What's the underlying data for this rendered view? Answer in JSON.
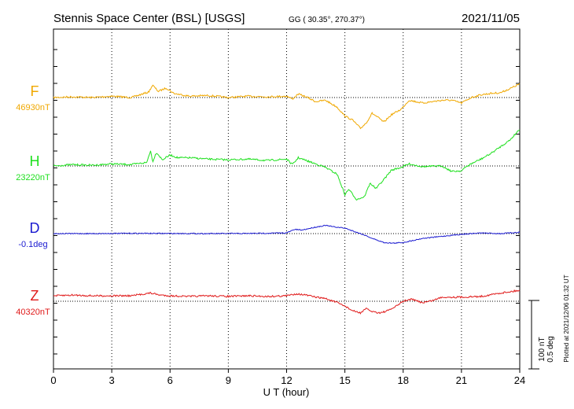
{
  "chart_data": {
    "type": "line",
    "title": "Stennis Space Center (BSL)  [USGS]",
    "subtitle": "GG ( 30.35°, 270.37°)",
    "date": "2021/11/05",
    "xlabel": "U T (hour)",
    "xlim": [
      0,
      24
    ],
    "xticks": [
      "0",
      "3",
      "6",
      "9",
      "12",
      "15",
      "18",
      "21",
      "24"
    ],
    "grid": true,
    "scale_bar": {
      "label1": "100 nT",
      "label2": "0.5 deg"
    },
    "plotted_note": "Plotted at 2021/12/06 01:32 UT",
    "series": [
      {
        "name": "F",
        "baseline_label": "46930nT",
        "color": "#f0a800",
        "unit": "nT",
        "baseline": 46930,
        "x": [
          0,
          1,
          2,
          3,
          4,
          4.9,
          5.1,
          5.4,
          5.8,
          6.2,
          7,
          8,
          9,
          10,
          11,
          12,
          12.3,
          12.6,
          13,
          13.5,
          14,
          14.6,
          15,
          15.4,
          15.8,
          16.1,
          16.4,
          16.7,
          17,
          17.4,
          17.9,
          18.3,
          19,
          20,
          20.5,
          21,
          21.5,
          22,
          22.5,
          23,
          23.5,
          24
        ],
        "values": [
          46930,
          46931,
          46930,
          46932,
          46930,
          46938,
          46948,
          46939,
          46944,
          46936,
          46932,
          46933,
          46930,
          46932,
          46931,
          46932,
          46928,
          46935,
          46931,
          46924,
          46926,
          46916,
          46903,
          46897,
          46885,
          46893,
          46907,
          46901,
          46894,
          46905,
          46913,
          46926,
          46922,
          46926,
          46926,
          46922,
          46930,
          46934,
          46936,
          46937,
          46943,
          46950
        ]
      },
      {
        "name": "H",
        "baseline_label": "23220nT",
        "color": "#1ee01e",
        "unit": "nT",
        "baseline": 23220,
        "x": [
          0,
          1,
          2,
          3,
          4,
          4.8,
          5.0,
          5.1,
          5.3,
          5.6,
          6,
          6.4,
          7,
          8,
          9,
          10,
          11,
          12,
          12.3,
          12.6,
          13,
          13.5,
          14,
          14.6,
          15,
          15.2,
          15.6,
          16,
          16.3,
          16.6,
          17,
          17.4,
          17.9,
          18.3,
          19,
          20,
          20.5,
          21,
          21.3,
          21.7,
          22,
          22.5,
          23,
          23.5,
          24
        ],
        "values": [
          23220,
          23222,
          23221,
          23223,
          23222,
          23225,
          23243,
          23226,
          23240,
          23229,
          23236,
          23232,
          23232,
          23230,
          23229,
          23230,
          23228,
          23230,
          23222,
          23232,
          23228,
          23223,
          23218,
          23208,
          23178,
          23186,
          23171,
          23175,
          23195,
          23187,
          23200,
          23214,
          23218,
          23223,
          23219,
          23220,
          23212,
          23213,
          23220,
          23226,
          23230,
          23238,
          23248,
          23258,
          23274
        ]
      },
      {
        "name": "D",
        "baseline_label": "-0.1deg",
        "color": "#1a1ad0",
        "unit": "deg",
        "baseline": -0.1,
        "x": [
          0,
          2,
          4,
          6,
          8,
          10,
          12,
          12.4,
          12.8,
          13.4,
          14,
          14.4,
          15,
          15.5,
          16,
          16.5,
          17,
          17.5,
          18,
          18.5,
          19,
          20,
          21,
          22,
          23,
          24
        ],
        "values": [
          -0.1,
          -0.1,
          -0.098,
          -0.099,
          -0.1,
          -0.099,
          -0.095,
          -0.07,
          -0.074,
          -0.055,
          -0.04,
          -0.05,
          -0.06,
          -0.085,
          -0.11,
          -0.14,
          -0.165,
          -0.17,
          -0.165,
          -0.15,
          -0.135,
          -0.12,
          -0.105,
          -0.095,
          -0.1,
          -0.09
        ]
      },
      {
        "name": "Z",
        "baseline_label": "40320nT",
        "color": "#e01a1a",
        "unit": "nT",
        "baseline": 40320,
        "x": [
          0,
          1,
          2,
          3,
          4,
          5,
          5.5,
          6,
          7,
          8,
          9,
          10,
          11,
          12,
          12.5,
          13,
          13.5,
          14,
          14.6,
          15,
          15.4,
          15.8,
          16.1,
          16.4,
          16.8,
          17.2,
          17.6,
          18,
          18.4,
          19,
          19.5,
          20,
          21,
          22,
          23,
          24
        ],
        "values": [
          40328,
          40329,
          40328,
          40328,
          40328,
          40332,
          40329,
          40328,
          40327,
          40328,
          40327,
          40328,
          40327,
          40328,
          40331,
          40329,
          40326,
          40324,
          40318,
          40313,
          40306,
          40303,
          40309,
          40305,
          40303,
          40306,
          40312,
          40320,
          40323,
          40318,
          40321,
          40326,
          40326,
          40327,
          40332,
          40336
        ]
      }
    ]
  },
  "colors": {
    "axis": "#000000",
    "grid": "#000000",
    "background": "#ffffff"
  }
}
